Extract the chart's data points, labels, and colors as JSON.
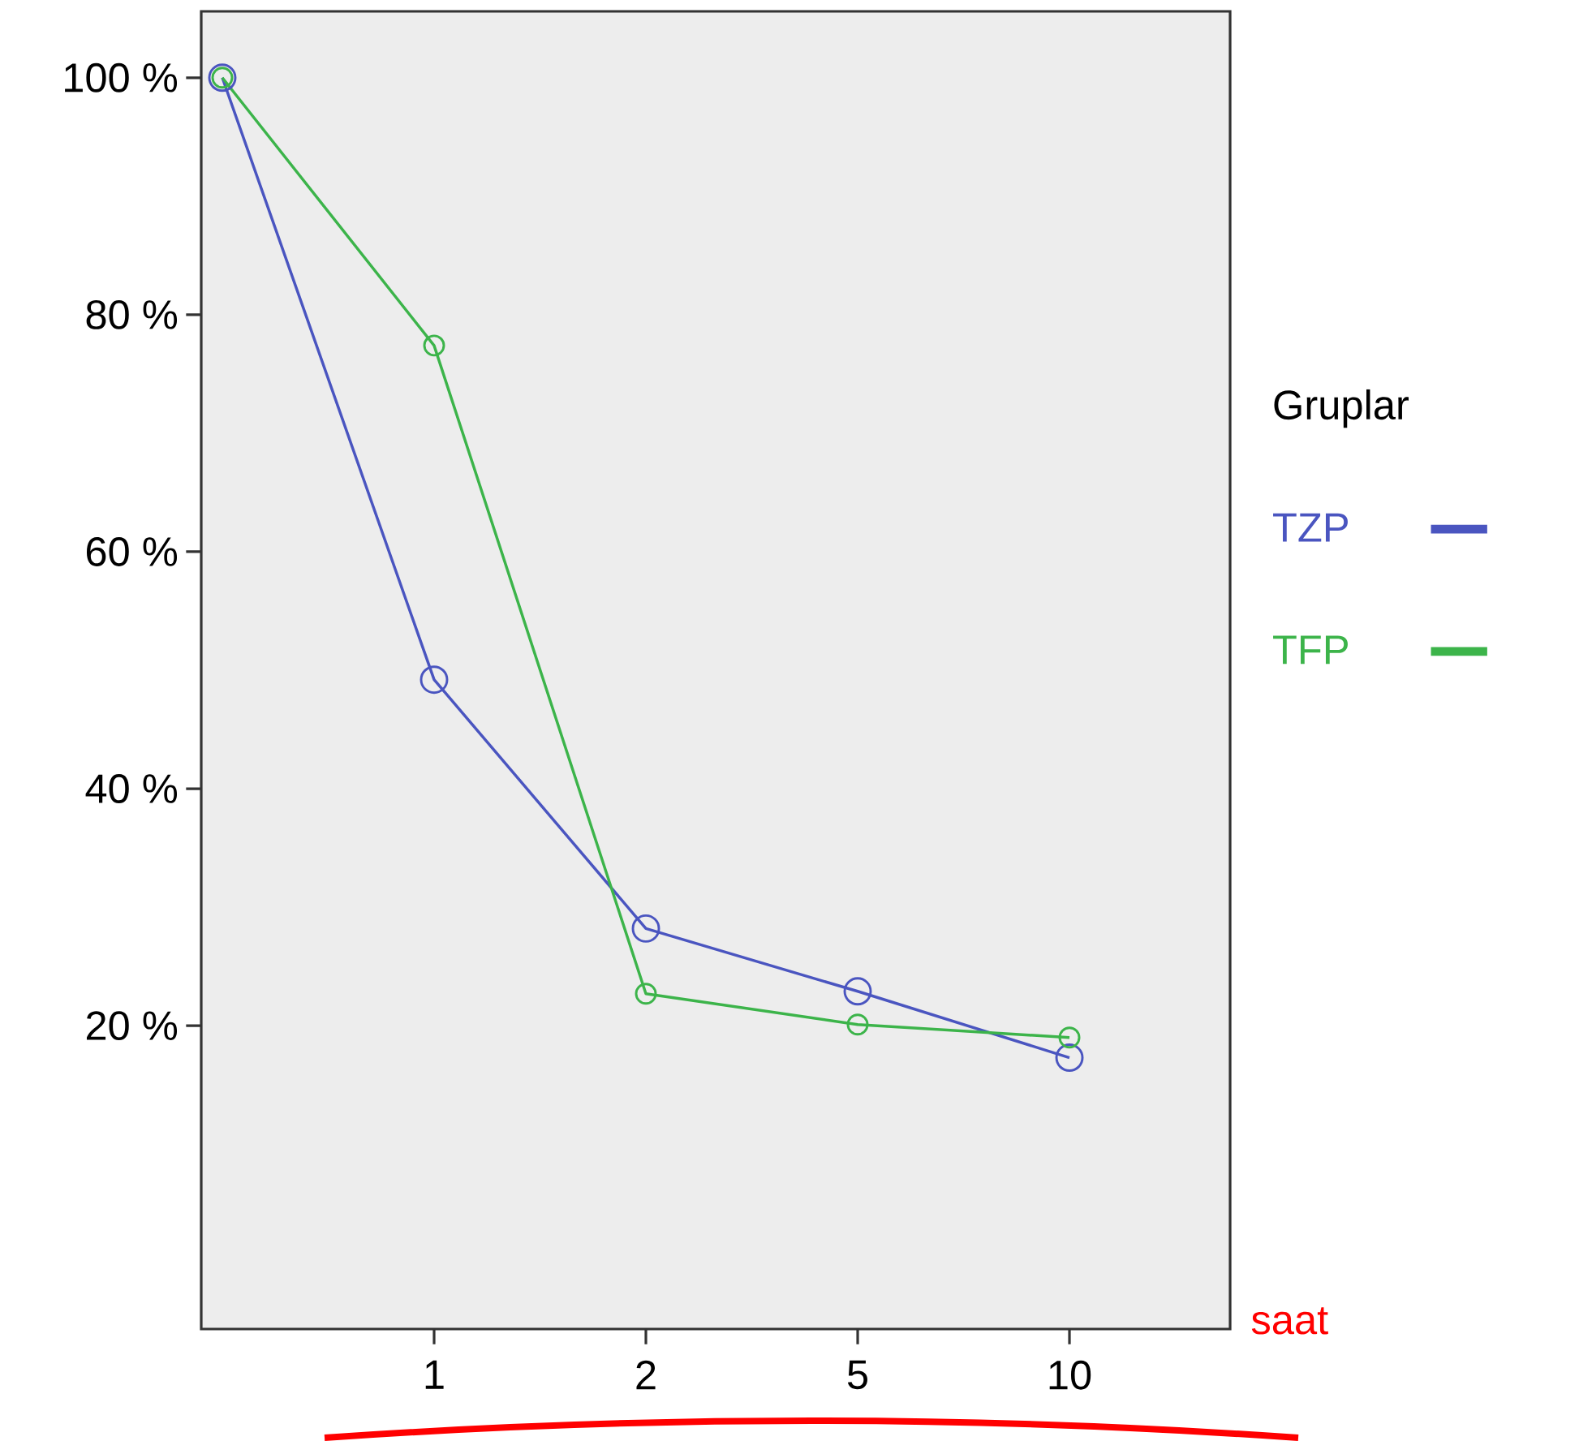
{
  "chart_data": {
    "type": "line",
    "xlabel": "saat",
    "legend_title": "Gruplar",
    "categories": [
      null,
      "1",
      "2",
      "5",
      "10"
    ],
    "series": [
      {
        "name": "TZP",
        "color": "#4a55c0",
        "values": [
          100,
          49.2,
          28.2,
          22.9,
          17.3
        ]
      },
      {
        "name": "TFP",
        "color": "#3cb44a",
        "values": [
          100,
          77.4,
          22.7,
          20.1,
          19.0
        ]
      }
    ],
    "ylim": [
      -5.6,
      105.6
    ],
    "yticks": [
      {
        "value": 20,
        "label": "20 %"
      },
      {
        "value": 40,
        "label": "40 %"
      },
      {
        "value": 60,
        "label": "60 %"
      },
      {
        "value": 80,
        "label": "80 %"
      },
      {
        "value": 100,
        "label": "100 %"
      }
    ],
    "legend": "right",
    "marker": "circle",
    "line_style": "solid",
    "grid": false
  }
}
